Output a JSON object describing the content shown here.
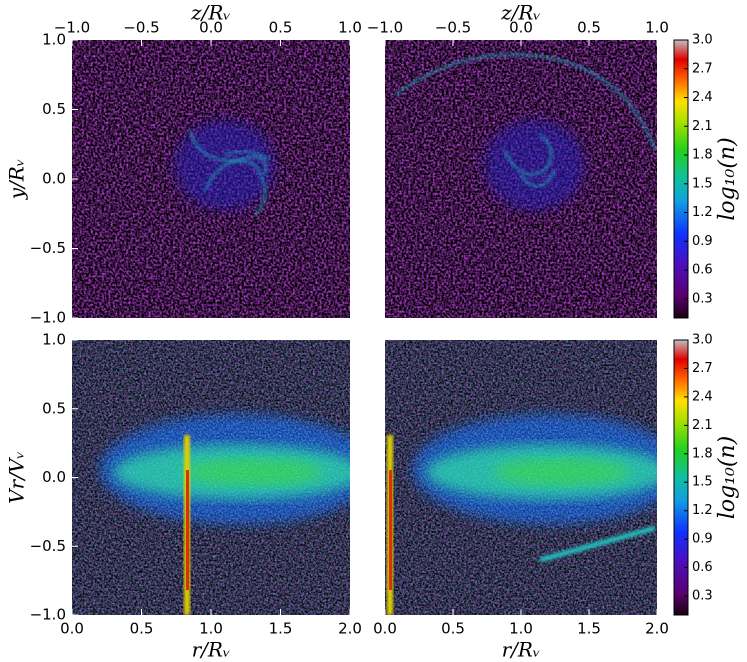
{
  "chart_data": [
    {
      "type": "heatmap",
      "xaxis": "top",
      "xlabel": "z/Rᵥ",
      "ylabel": "y/Rᵥ",
      "xlim": [
        -1.0,
        1.0
      ],
      "ylim": [
        -1.0,
        1.0
      ],
      "xticks": [
        {
          "value": -1.0,
          "label": "−1.0"
        },
        {
          "value": -0.5,
          "label": "−0.5"
        },
        {
          "value": 0.0,
          "label": "0.0"
        },
        {
          "value": 0.5,
          "label": "0.5"
        },
        {
          "value": 1.0,
          "label": "1.0"
        }
      ],
      "yticks": [
        {
          "value": -1.0,
          "label": "−1.0"
        },
        {
          "value": -0.5,
          "label": "−0.5"
        },
        {
          "value": 0.0,
          "label": "0.0"
        },
        {
          "value": 0.5,
          "label": "0.5"
        },
        {
          "value": 1.0,
          "label": "1.0"
        }
      ]
    },
    {
      "type": "heatmap",
      "xaxis": "top",
      "xlabel": "z/Rᵥ",
      "xlim": [
        -1.0,
        1.0
      ],
      "ylim": [
        -1.0,
        1.0
      ],
      "xticks": [
        {
          "value": -1.0,
          "label": "−1.0"
        },
        {
          "value": -0.5,
          "label": "−0.5"
        },
        {
          "value": 0.0,
          "label": "0.0"
        },
        {
          "value": 0.5,
          "label": "0.5"
        },
        {
          "value": 1.0,
          "label": "1.0"
        }
      ],
      "colorbar": {
        "label": "log₁₀(n)",
        "lim": [
          0.1,
          3.0
        ],
        "ticks": [
          0.3,
          0.6,
          0.9,
          1.2,
          1.5,
          1.8,
          2.1,
          2.4,
          2.7,
          {
            "value": 3.0,
            "label": "3.0"
          }
        ]
      }
    },
    {
      "type": "heatmap",
      "xaxis": "bottom",
      "xlabel": "r/Rᵥ",
      "ylabel": "Vr/Vᵥ",
      "xlim": [
        0.0,
        2.0
      ],
      "ylim": [
        -1.0,
        1.0
      ],
      "xticks": [
        {
          "value": 0.0,
          "label": "0.0"
        },
        {
          "value": 0.5,
          "label": "0.5"
        },
        {
          "value": 1.0,
          "label": "1.0"
        },
        {
          "value": 1.5,
          "label": "1.5"
        },
        {
          "value": 2.0,
          "label": "2.0"
        }
      ],
      "yticks": [
        {
          "value": -1.0,
          "label": "−1.0"
        },
        {
          "value": -0.5,
          "label": "−0.5"
        },
        {
          "value": 0.0,
          "label": "0.0"
        },
        {
          "value": 0.5,
          "label": "0.5"
        },
        {
          "value": 1.0,
          "label": "1.0"
        }
      ]
    },
    {
      "type": "heatmap",
      "xaxis": "bottom",
      "xlabel": "r/Rᵥ",
      "xlim": [
        0.0,
        2.0
      ],
      "ylim": [
        -1.0,
        1.0
      ],
      "xticks": [
        {
          "value": 0.0,
          "label": "0.0"
        },
        {
          "value": 0.5,
          "label": "0.5"
        },
        {
          "value": 1.0,
          "label": "1.0"
        },
        {
          "value": 1.5,
          "label": "1.5"
        },
        {
          "value": 2.0,
          "label": "2.0"
        }
      ],
      "colorbar": {
        "label": "log₁₀(n)",
        "lim": [
          0.1,
          3.0
        ],
        "ticks": [
          0.3,
          0.6,
          0.9,
          1.2,
          1.5,
          1.8,
          2.1,
          2.4,
          2.7,
          {
            "value": 3.0,
            "label": "3.0"
          }
        ]
      }
    }
  ]
}
